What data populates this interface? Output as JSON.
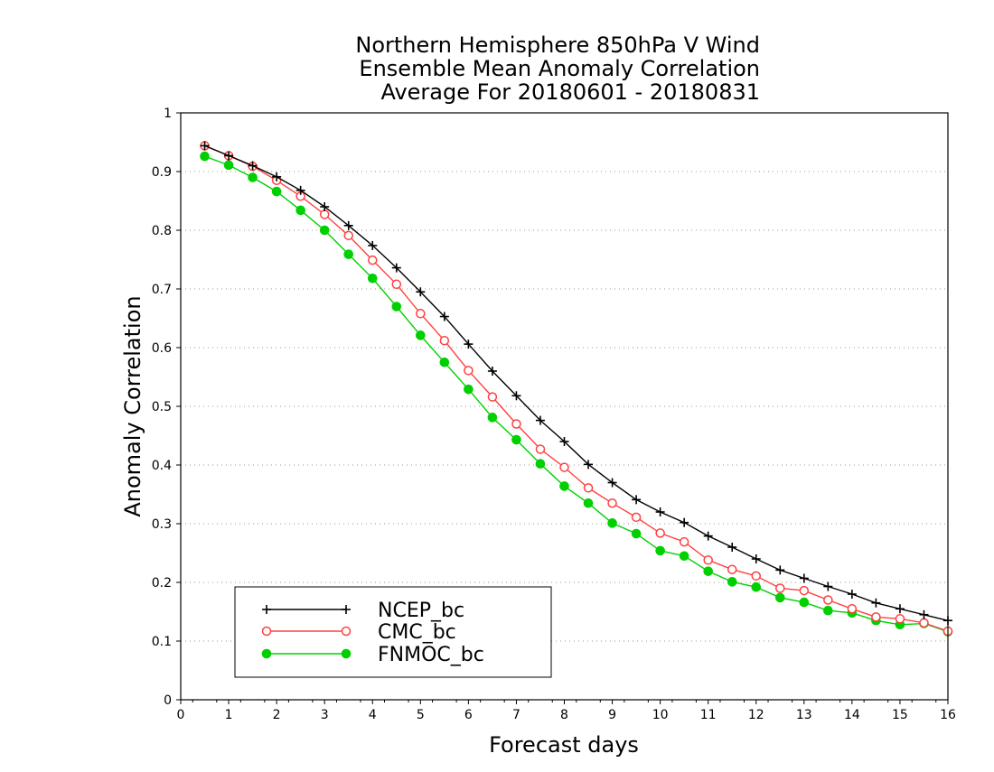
{
  "chart_data": {
    "type": "line",
    "title_lines": [
      "Northern Hemisphere 850hPa V Wind",
      "Ensemble Mean Anomaly Correlation",
      "Average For 20180601 - 20180831"
    ],
    "xlabel": "Forecast days",
    "ylabel": "Anomaly Correlation",
    "xlim": [
      0,
      16
    ],
    "ylim": [
      0,
      1
    ],
    "x_ticks": [
      "0",
      "1",
      "2",
      "3",
      "4",
      "5",
      "6",
      "7",
      "8",
      "9",
      "10",
      "11",
      "12",
      "13",
      "14",
      "15",
      "16"
    ],
    "y_ticks": [
      "0",
      "0.1",
      "0.2",
      "0.3",
      "0.4",
      "0.5",
      "0.6",
      "0.7",
      "0.8",
      "0.9",
      "1"
    ],
    "grid": "horizontal dotted",
    "legend_placement": "bottom-left",
    "x": [
      0.5,
      1,
      1.5,
      2,
      2.5,
      3,
      3.5,
      4,
      4.5,
      5,
      5.5,
      6,
      6.5,
      7,
      7.5,
      8,
      8.5,
      9,
      9.5,
      10,
      10.5,
      11,
      11.5,
      12,
      12.5,
      13,
      13.5,
      14,
      14.5,
      15,
      15.5,
      16
    ],
    "series": [
      {
        "name": "NCEP_bc",
        "color": "#000000",
        "marker": "plus",
        "values": [
          0.944,
          0.927,
          0.91,
          0.891,
          0.868,
          0.84,
          0.808,
          0.774,
          0.736,
          0.695,
          0.653,
          0.606,
          0.56,
          0.518,
          0.476,
          0.44,
          0.401,
          0.37,
          0.341,
          0.32,
          0.302,
          0.279,
          0.26,
          0.24,
          0.221,
          0.207,
          0.193,
          0.18,
          0.165,
          0.155,
          0.145,
          0.135
        ]
      },
      {
        "name": "CMC_bc",
        "color": "#ff4040",
        "marker": "open-circle",
        "values": [
          0.944,
          0.927,
          0.909,
          0.885,
          0.858,
          0.827,
          0.791,
          0.749,
          0.708,
          0.658,
          0.612,
          0.561,
          0.516,
          0.47,
          0.427,
          0.396,
          0.361,
          0.335,
          0.311,
          0.284,
          0.269,
          0.238,
          0.222,
          0.211,
          0.19,
          0.186,
          0.17,
          0.155,
          0.141,
          0.138,
          0.131,
          0.117
        ]
      },
      {
        "name": "FNMOC_bc",
        "color": "#00d000",
        "marker": "filled-circle",
        "values": [
          0.926,
          0.911,
          0.89,
          0.866,
          0.834,
          0.8,
          0.759,
          0.718,
          0.67,
          0.621,
          0.575,
          0.529,
          0.481,
          0.443,
          0.402,
          0.364,
          0.335,
          0.301,
          0.283,
          0.254,
          0.245,
          0.219,
          0.201,
          0.192,
          0.174,
          0.166,
          0.152,
          0.148,
          0.135,
          0.128,
          0.13,
          0.116
        ]
      }
    ]
  }
}
